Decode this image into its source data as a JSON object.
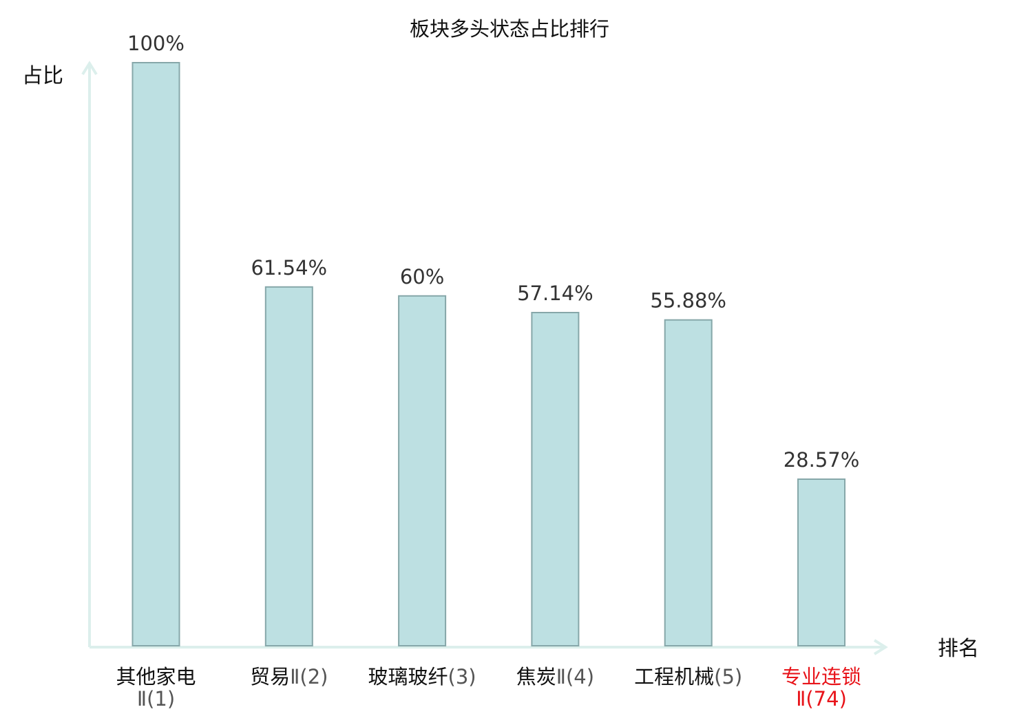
{
  "chart_data": {
    "type": "bar",
    "title": "板块多头状态占比排行",
    "ylabel": "占比",
    "xlabel": "排名",
    "ylim": [
      0,
      100
    ],
    "grid": false,
    "legend": "none",
    "categories": [
      {
        "name": "其他家电",
        "rank": "Ⅱ(1)",
        "highlight": false
      },
      {
        "name": "贸易",
        "rank": "Ⅱ(2)",
        "highlight": false
      },
      {
        "name": "玻璃玻纤",
        "rank": "(3)",
        "highlight": false
      },
      {
        "name": "焦炭",
        "rank": "Ⅱ(4)",
        "highlight": false
      },
      {
        "name": "工程机械",
        "rank": "(5)",
        "highlight": false
      },
      {
        "name": "专业连锁",
        "rank": "Ⅱ(74)",
        "highlight": true
      }
    ],
    "values": [
      100,
      61.54,
      60,
      57.14,
      55.88,
      28.57
    ],
    "value_labels": [
      "100%",
      "61.54%",
      "60%",
      "57.14%",
      "55.88%",
      "28.57%"
    ],
    "colors": {
      "bar_fill": "#bde0e2",
      "bar_stroke": "#86a7a9",
      "axis": "#dcefec",
      "highlight_text": "#e8141a",
      "normal_text": "#111111",
      "rank_text": "#555555"
    }
  }
}
